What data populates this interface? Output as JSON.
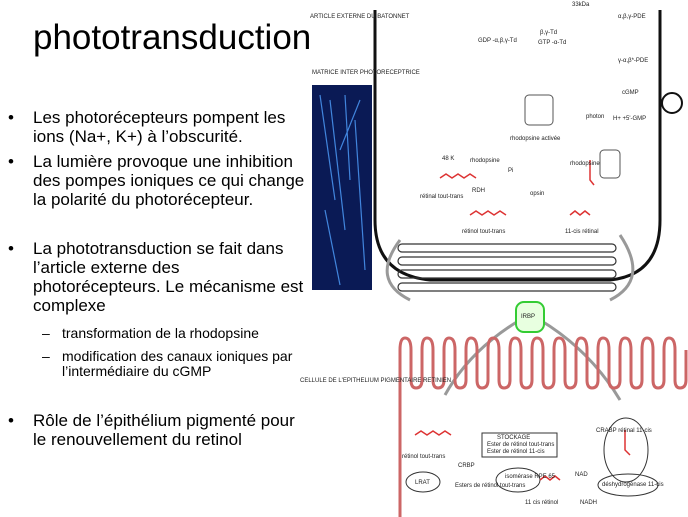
{
  "title": "phototransduction",
  "bullets": [
    {
      "text": "Les photorécepteurs pompent les ions (Na+, K+) à l’obscurité."
    },
    {
      "text": "La lumière provoque une inhibition des pompes ioniques ce qui change la polarité du photorécepteur."
    },
    {
      "text": "La phototransduction se fait dans l’article externe des photorécepteurs. Le mécanisme est complexe",
      "sub": [
        "transformation de la rhodopsine",
        "modification des canaux ioniques par l’intermédiaire du cGMP"
      ]
    },
    {
      "text": "Rôle de l’épithélium pigmenté pour le renouvellement du retinol"
    }
  ],
  "diagram": {
    "labels": [
      "ARTICLE EXTERNE DU BATONNET",
      "MATRICE INTER PHOTORECEPTRICE",
      "CELLULE DE L'EPITHELIUM PIGMENTAIRE RETINIEN",
      "33kDa",
      "GDP -α,β,γ-Td",
      "β,γ-Td",
      "GTP -α-Td",
      "α,β,γ-PDE",
      "γ-α,β*-PDE",
      "cGMP",
      "H+ +5'-GMP",
      "photon",
      "rhodopsine activée",
      "48 K",
      "rhodopsine",
      "rhodopsine",
      "Pi",
      "RDH",
      "opsin",
      "rétinal tout-trans",
      "rétinol tout-trans",
      "11-cis rétinal",
      "IRBP",
      "STOCKAGE",
      "Ester de rétinol tout-trans",
      "Ester de rétinol 11-cis",
      "CRABP rétinal 11-cis",
      "rétinol tout-trans",
      "CRBP",
      "LRAT",
      "Esters de rétinol tout-trans",
      "isomérase RPE 65",
      "11 cis rétinol",
      "NAD",
      "déshydrogénase 11-cis",
      "NADH"
    ]
  }
}
